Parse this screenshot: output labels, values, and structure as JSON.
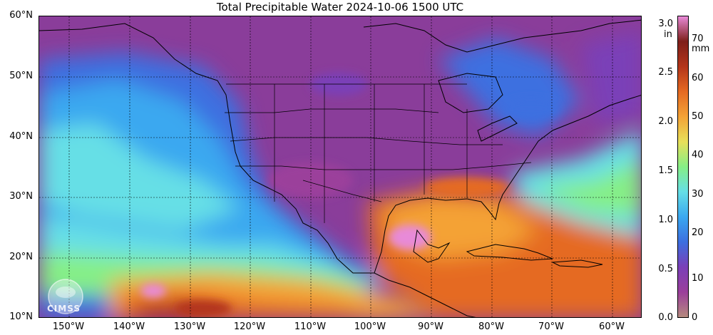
{
  "title": "Total Precipitable Water  2024-10-06 1500 UTC",
  "map": {
    "lon_range": [
      -155,
      -55
    ],
    "lat_range": [
      10,
      60
    ],
    "lat_labels": [
      "60°N",
      "50°N",
      "40°N",
      "30°N",
      "20°N",
      "10°N"
    ],
    "lon_labels": [
      "150°W",
      "140°W",
      "130°W",
      "120°W",
      "110°W",
      "100°W",
      "90°W",
      "80°W",
      "70°W",
      "60°W"
    ],
    "lat_values": [
      60,
      50,
      40,
      30,
      20,
      10
    ],
    "lon_values": [
      -150,
      -140,
      -130,
      -120,
      -110,
      -100,
      -90,
      -80,
      -70,
      -60
    ]
  },
  "colorbar": {
    "inch_unit": "in",
    "mm_unit": "mm",
    "inch_labels": [
      "3.0",
      "2.5",
      "2.0",
      "1.5",
      "1.0",
      "0.5",
      "0.0"
    ],
    "inch_values": [
      3.0,
      2.5,
      2.0,
      1.5,
      1.0,
      0.5,
      0.0
    ],
    "mm_labels": [
      "70",
      "60",
      "50",
      "40",
      "30",
      "20",
      "10",
      "0"
    ],
    "mm_values": [
      70,
      60,
      50,
      40,
      30,
      20,
      10,
      0
    ],
    "mm_max": 78,
    "colors": [
      "#b58a7e",
      "#9b3f9b",
      "#7a3fb8",
      "#3c6fe0",
      "#3aa8f0",
      "#66dfe6",
      "#86ef86",
      "#e8e05a",
      "#f4a236",
      "#e56a22",
      "#b3351a",
      "#7e1f1a",
      "#e88ad8"
    ]
  },
  "logo": {
    "text": "CIMSS"
  }
}
